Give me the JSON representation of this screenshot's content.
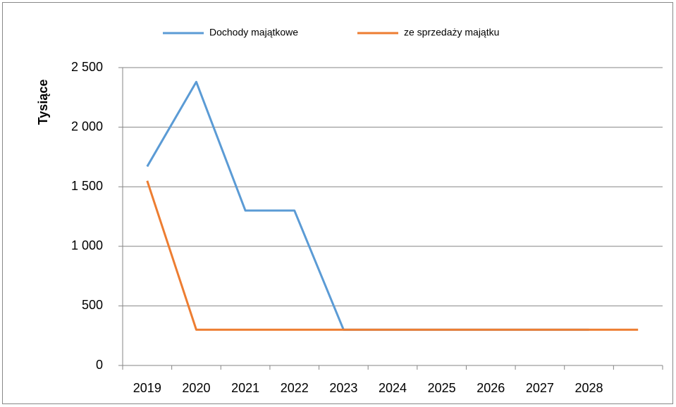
{
  "chart_data": {
    "type": "line",
    "y_label": "Tysiące",
    "categories": [
      "2019",
      "2020",
      "2021",
      "2022",
      "2023",
      "2024",
      "2025",
      "2026",
      "2027",
      "2028",
      null
    ],
    "series": [
      {
        "name": "Dochody majątkowe",
        "color": "#5b9bd5",
        "values": [
          1670,
          2380,
          1300,
          1300,
          300,
          300,
          300,
          300,
          300,
          300,
          null
        ]
      },
      {
        "name": "ze sprzedaży majątku",
        "color": "#ed7d31",
        "values": [
          1550,
          300,
          300,
          300,
          300,
          300,
          300,
          300,
          300,
          300,
          300
        ]
      }
    ],
    "ylim": [
      0,
      2500
    ],
    "yticks": [
      0,
      500,
      {
        "value": 1000,
        "label": "1 000"
      },
      {
        "value": 1500,
        "label": "1 500"
      },
      {
        "value": 2000,
        "label": "2 000"
      },
      {
        "value": 2500,
        "label": "2 500"
      }
    ],
    "grid": true,
    "legend": "top"
  }
}
